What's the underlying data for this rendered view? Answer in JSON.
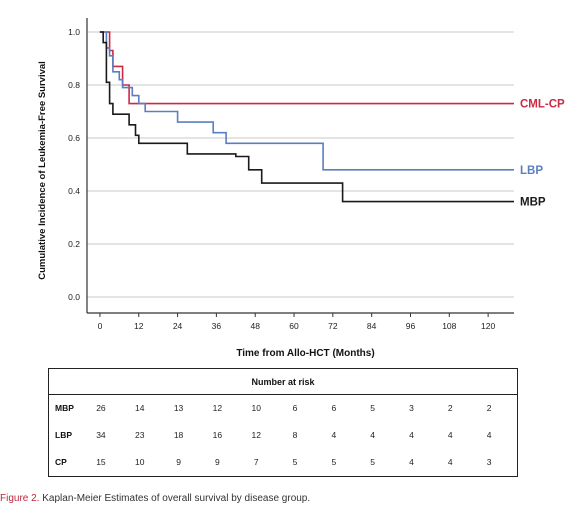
{
  "chart_data": {
    "type": "line",
    "step": true,
    "ylabel": "Cumulative Incidence of Leukemia-Free Survival",
    "xlabel": "Time from Allo-HCT (Months)",
    "xlim": [
      -4,
      128
    ],
    "ylim": [
      0,
      1.0
    ],
    "xticks": [
      0,
      12,
      24,
      36,
      48,
      60,
      72,
      84,
      96,
      108,
      120
    ],
    "yticks": [
      0.0,
      0.2,
      0.4,
      0.6,
      0.8,
      1.0
    ],
    "ytick_labels": [
      "0.0",
      "0.2",
      "0.4",
      "0.6",
      "0.8",
      "1.0"
    ],
    "grid": "horizontal",
    "series": [
      {
        "name": "CML-CP",
        "color": "#cc2945",
        "points": [
          [
            0,
            1.0
          ],
          [
            3,
            1.0
          ],
          [
            3,
            0.93
          ],
          [
            4,
            0.93
          ],
          [
            4,
            0.87
          ],
          [
            7,
            0.87
          ],
          [
            7,
            0.8
          ],
          [
            9,
            0.8
          ],
          [
            9,
            0.73
          ],
          [
            128,
            0.73
          ]
        ]
      },
      {
        "name": "LBP",
        "color": "#5a7fc0",
        "points": [
          [
            0,
            1.0
          ],
          [
            2,
            1.0
          ],
          [
            2,
            0.94
          ],
          [
            3,
            0.94
          ],
          [
            3,
            0.91
          ],
          [
            4,
            0.91
          ],
          [
            4,
            0.85
          ],
          [
            6,
            0.85
          ],
          [
            6,
            0.82
          ],
          [
            7,
            0.82
          ],
          [
            7,
            0.79
          ],
          [
            10,
            0.79
          ],
          [
            10,
            0.76
          ],
          [
            12,
            0.76
          ],
          [
            12,
            0.73
          ],
          [
            14,
            0.73
          ],
          [
            14,
            0.7
          ],
          [
            24,
            0.7
          ],
          [
            24,
            0.66
          ],
          [
            35,
            0.66
          ],
          [
            35,
            0.62
          ],
          [
            39,
            0.62
          ],
          [
            39,
            0.58
          ],
          [
            42,
            0.58
          ],
          [
            42,
            0.58
          ],
          [
            69,
            0.58
          ],
          [
            69,
            0.48
          ],
          [
            128,
            0.48
          ]
        ]
      },
      {
        "name": "MBP",
        "color": "#1a1a1a",
        "points": [
          [
            0,
            1.0
          ],
          [
            1,
            1.0
          ],
          [
            1,
            0.96
          ],
          [
            2,
            0.96
          ],
          [
            2,
            0.81
          ],
          [
            3,
            0.81
          ],
          [
            3,
            0.73
          ],
          [
            4,
            0.73
          ],
          [
            4,
            0.69
          ],
          [
            9,
            0.69
          ],
          [
            9,
            0.65
          ],
          [
            11,
            0.65
          ],
          [
            11,
            0.61
          ],
          [
            12,
            0.61
          ],
          [
            12,
            0.58
          ],
          [
            27,
            0.58
          ],
          [
            27,
            0.54
          ],
          [
            42,
            0.54
          ],
          [
            42,
            0.53
          ],
          [
            46,
            0.53
          ],
          [
            46,
            0.48
          ],
          [
            50,
            0.48
          ],
          [
            50,
            0.43
          ],
          [
            72,
            0.43
          ],
          [
            72,
            0.43
          ],
          [
            75,
            0.43
          ],
          [
            75,
            0.36
          ],
          [
            128,
            0.36
          ]
        ]
      }
    ]
  },
  "risk_table": {
    "title": "Number at risk",
    "rows": [
      {
        "label": "MBP",
        "values": [
          "26",
          "14",
          "13",
          "12",
          "10",
          "6",
          "6",
          "5",
          "3",
          "2",
          "2"
        ]
      },
      {
        "label": "LBP",
        "values": [
          "34",
          "23",
          "18",
          "16",
          "12",
          "8",
          "4",
          "4",
          "4",
          "4",
          "4"
        ]
      },
      {
        "label": "CP",
        "values": [
          "15",
          "10",
          "9",
          "9",
          "7",
          "5",
          "5",
          "5",
          "4",
          "4",
          "3"
        ]
      }
    ]
  },
  "caption": {
    "lead": "Figure 2.",
    "text": "Kaplan-Meier Estimates of overall survival by disease group."
  }
}
